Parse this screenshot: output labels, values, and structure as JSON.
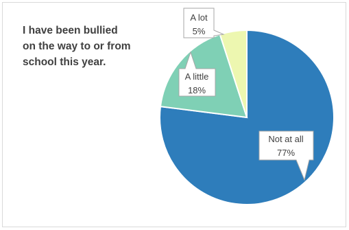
{
  "chart_data": {
    "type": "pie",
    "title_lines": [
      "I have been bullied",
      "on the way to or from",
      "school this year."
    ],
    "slices": [
      {
        "label": "Not at all",
        "value": 77,
        "value_text": "77%",
        "color": "#2e7dbb"
      },
      {
        "label": "A little",
        "value": 18,
        "value_text": "18%",
        "color": "#7fd0b5"
      },
      {
        "label": "A lot",
        "value": 5,
        "value_text": "5%",
        "color": "#edf7b0"
      }
    ]
  }
}
